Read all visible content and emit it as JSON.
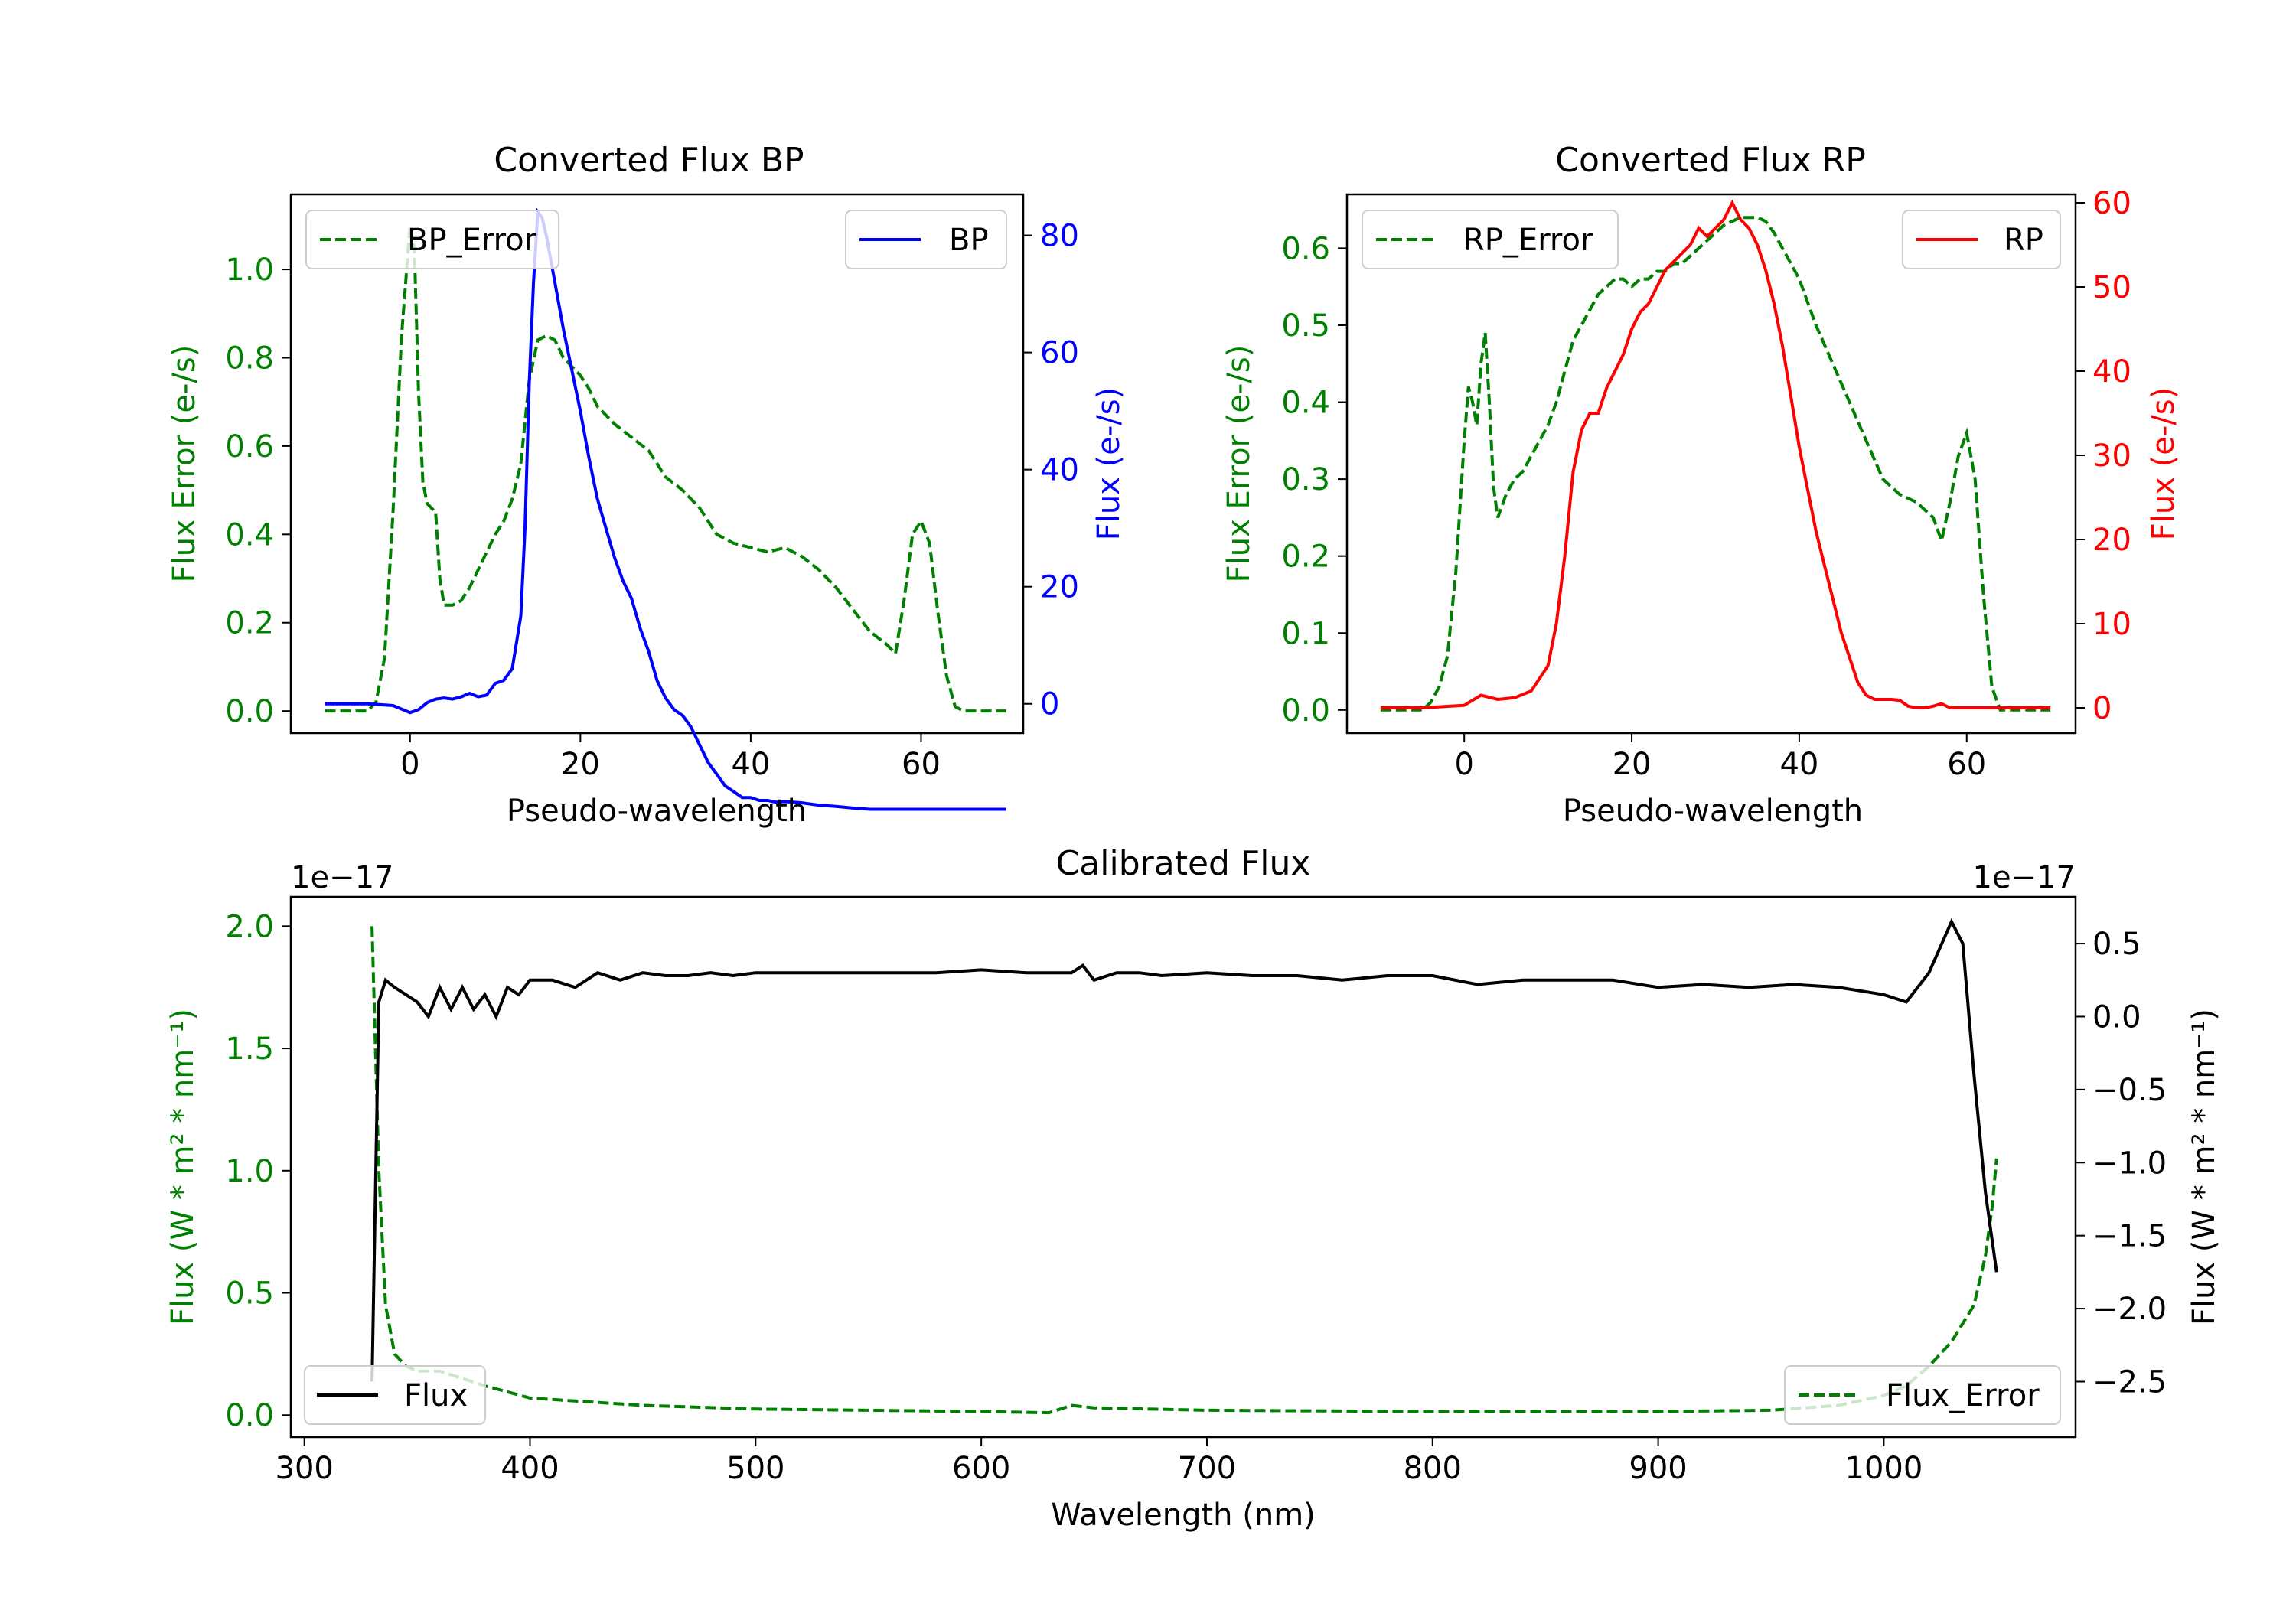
{
  "colors": {
    "error": "#008000",
    "bp": "#0000ff",
    "rp": "#ff0000",
    "flux": "#000000",
    "axis": "#000000"
  },
  "chart_data": [
    {
      "id": "bp",
      "type": "line",
      "title": "Converted Flux BP",
      "xlabel": "Pseudo-wavelength",
      "ylabel_left": "Flux Error (e-/s)",
      "ylabel_right": "Flux (e-/s)",
      "xlim": [
        -14,
        72
      ],
      "ylim_left": [
        -0.05,
        1.17
      ],
      "ylim_right": [
        -5,
        87
      ],
      "xticks": [
        0,
        20,
        40,
        60
      ],
      "xtick_labels": [
        "0",
        "20",
        "40",
        "60"
      ],
      "yticks_left": [
        0.0,
        0.2,
        0.4,
        0.6,
        0.8,
        1.0
      ],
      "ytick_labels_left": [
        "0.0",
        "0.2",
        "0.4",
        "0.6",
        "0.8",
        "1.0"
      ],
      "yticks_right": [
        0,
        20,
        40,
        60,
        80
      ],
      "ytick_labels_right": [
        "0",
        "20",
        "40",
        "60",
        "80"
      ],
      "legend_left": "BP_Error",
      "legend_right": "BP",
      "error_x": [
        -10,
        -5,
        -4,
        -3,
        -2,
        -1,
        0,
        0.5,
        1,
        1.5,
        2,
        3,
        3.5,
        4,
        5,
        6,
        7,
        8,
        9,
        10,
        11,
        12,
        13,
        14,
        15,
        16,
        17,
        18,
        19,
        20,
        21,
        22,
        24,
        26,
        28,
        30,
        32,
        34,
        36,
        38,
        40,
        42,
        44,
        46,
        48,
        50,
        52,
        54,
        56,
        57,
        58,
        59,
        60,
        61,
        62,
        63,
        64,
        65,
        70
      ],
      "error_y": [
        0,
        0,
        0.02,
        0.12,
        0.45,
        0.85,
        1.1,
        1.05,
        0.72,
        0.52,
        0.47,
        0.45,
        0.3,
        0.24,
        0.24,
        0.25,
        0.28,
        0.32,
        0.36,
        0.4,
        0.43,
        0.48,
        0.56,
        0.75,
        0.84,
        0.85,
        0.84,
        0.8,
        0.78,
        0.76,
        0.73,
        0.69,
        0.65,
        0.62,
        0.59,
        0.53,
        0.5,
        0.46,
        0.4,
        0.38,
        0.37,
        0.36,
        0.37,
        0.35,
        0.32,
        0.28,
        0.23,
        0.18,
        0.15,
        0.13,
        0.25,
        0.4,
        0.43,
        0.38,
        0.22,
        0.08,
        0.01,
        0,
        0
      ],
      "flux_x": [
        -10,
        -5,
        -2,
        0,
        1,
        2,
        3,
        4,
        5,
        6,
        7,
        8,
        9,
        10,
        11,
        12,
        13,
        13.5,
        14,
        14.5,
        15,
        15.5,
        16,
        17,
        18,
        19,
        20,
        21,
        22,
        23,
        24,
        25,
        26,
        27,
        28,
        29,
        30,
        31,
        32,
        33,
        34,
        35,
        36,
        37,
        38,
        39,
        40,
        41,
        42,
        43,
        44,
        45,
        46,
        48,
        50,
        52,
        54,
        56,
        58,
        60,
        62,
        65,
        70
      ],
      "flux_y": [
        0,
        0,
        -0.3,
        -1.5,
        -1,
        0.2,
        0.8,
        1,
        0.8,
        1.2,
        1.8,
        1.2,
        1.5,
        3.5,
        4,
        6,
        15,
        30,
        55,
        72,
        84,
        83,
        80,
        72,
        64,
        57,
        50,
        42,
        35,
        30,
        25,
        21,
        18,
        13,
        9,
        4,
        1,
        -1,
        -2,
        -4,
        -7,
        -10,
        -12,
        -14,
        -15,
        -16,
        -16,
        -16.5,
        -16.5,
        -16.8,
        -16.7,
        -16.8,
        -16.9,
        -17.3,
        -17.5,
        -17.8,
        -18,
        -18,
        -18,
        -18,
        -18,
        -18,
        -18
      ]
    },
    {
      "id": "rp",
      "type": "line",
      "title": "Converted Flux RP",
      "xlabel": "Pseudo-wavelength",
      "ylabel_left": "Flux Error (e-/s)",
      "ylabel_right": "Flux (e-/s)",
      "xlim": [
        -14,
        73
      ],
      "ylim_left": [
        -0.03,
        0.67
      ],
      "ylim_right": [
        -3,
        61
      ],
      "xticks": [
        0,
        20,
        40,
        60
      ],
      "xtick_labels": [
        "0",
        "20",
        "40",
        "60"
      ],
      "yticks_left": [
        0.0,
        0.1,
        0.2,
        0.3,
        0.4,
        0.5,
        0.6
      ],
      "ytick_labels_left": [
        "0.0",
        "0.1",
        "0.2",
        "0.3",
        "0.4",
        "0.5",
        "0.6"
      ],
      "yticks_right": [
        0,
        10,
        20,
        30,
        40,
        50,
        60
      ],
      "ytick_labels_right": [
        "0",
        "10",
        "20",
        "30",
        "40",
        "50",
        "60"
      ],
      "legend_left": "RP_Error",
      "legend_right": "RP",
      "error_x": [
        -10,
        -5,
        -4,
        -3,
        -2,
        -1,
        0,
        0.5,
        1,
        1.5,
        2,
        2.5,
        3,
        3.5,
        4,
        5,
        6,
        7,
        8,
        9,
        10,
        11,
        12,
        13,
        14,
        15,
        16,
        17,
        18,
        19,
        20,
        21,
        22,
        23,
        24,
        25,
        26,
        27,
        28,
        29,
        30,
        31,
        32,
        33,
        34,
        35,
        36,
        37,
        38,
        39,
        40,
        42,
        44,
        46,
        48,
        50,
        52,
        54,
        55,
        56,
        57,
        58,
        59,
        60,
        61,
        62,
        63,
        64,
        65,
        70
      ],
      "error_y": [
        0,
        0,
        0.01,
        0.03,
        0.07,
        0.18,
        0.35,
        0.42,
        0.4,
        0.37,
        0.45,
        0.49,
        0.4,
        0.29,
        0.25,
        0.28,
        0.3,
        0.31,
        0.33,
        0.35,
        0.37,
        0.4,
        0.44,
        0.48,
        0.5,
        0.52,
        0.54,
        0.55,
        0.56,
        0.56,
        0.55,
        0.56,
        0.56,
        0.57,
        0.57,
        0.58,
        0.58,
        0.59,
        0.6,
        0.61,
        0.62,
        0.63,
        0.635,
        0.64,
        0.64,
        0.64,
        0.635,
        0.62,
        0.6,
        0.58,
        0.56,
        0.5,
        0.45,
        0.4,
        0.35,
        0.3,
        0.28,
        0.27,
        0.26,
        0.25,
        0.22,
        0.27,
        0.33,
        0.36,
        0.3,
        0.15,
        0.03,
        0,
        0,
        0
      ],
      "flux_x": [
        -10,
        -5,
        0,
        2,
        4,
        6,
        8,
        10,
        11,
        12,
        13,
        14,
        15,
        16,
        17,
        18,
        19,
        20,
        21,
        22,
        23,
        24,
        25,
        26,
        27,
        28,
        29,
        30,
        31,
        32,
        33,
        34,
        35,
        36,
        37,
        38,
        39,
        40,
        41,
        42,
        43,
        44,
        45,
        46,
        47,
        48,
        49,
        50,
        51,
        52,
        53,
        54,
        55,
        56,
        57,
        58,
        60,
        62,
        65,
        70
      ],
      "flux_y": [
        0,
        0,
        0.3,
        1.5,
        1,
        1.2,
        2,
        5,
        10,
        18,
        28,
        33,
        35,
        35,
        38,
        40,
        42,
        45,
        47,
        48,
        50,
        52,
        53,
        54,
        55,
        57,
        56,
        57,
        58,
        60,
        58,
        57,
        55,
        52,
        48,
        43,
        37,
        31,
        26,
        21,
        17,
        13,
        9,
        6,
        3,
        1.5,
        1,
        1,
        1,
        0.9,
        0.2,
        0,
        0,
        0.2,
        0.5,
        0,
        0,
        0,
        0,
        0
      ]
    },
    {
      "id": "cal",
      "type": "line",
      "title": "Calibrated Flux",
      "xlabel": "Wavelength (nm)",
      "ylabel_left": "Flux (W * m² * nm⁻¹)",
      "ylabel_right": "Flux (W * m² * nm⁻¹)",
      "offset_left": "1e−17",
      "offset_right": "1e−17",
      "xlim": [
        294,
        1085
      ],
      "ylim_left": [
        -0.09,
        2.12
      ],
      "ylim_right": [
        -2.88,
        0.82
      ],
      "xticks": [
        300,
        400,
        500,
        600,
        700,
        800,
        900,
        1000
      ],
      "xtick_labels": [
        "300",
        "400",
        "500",
        "600",
        "700",
        "800",
        "900",
        "1000"
      ],
      "yticks_left": [
        0.0,
        0.5,
        1.0,
        1.5,
        2.0
      ],
      "ytick_labels_left": [
        "0.0",
        "0.5",
        "1.0",
        "1.5",
        "2.0"
      ],
      "yticks_right": [
        0.5,
        0.0,
        -0.5,
        -1.0,
        -1.5,
        -2.0,
        -2.5
      ],
      "ytick_labels_right": [
        "0.5",
        "0.0",
        "−0.5",
        "−1.0",
        "−1.5",
        "−2.0",
        "−2.5"
      ],
      "legend_left": "Flux",
      "legend_right": "Flux_Error",
      "error_x": [
        330,
        333,
        336,
        340,
        345,
        350,
        360,
        380,
        400,
        450,
        500,
        550,
        600,
        630,
        640,
        650,
        700,
        800,
        900,
        950,
        980,
        1000,
        1010,
        1020,
        1030,
        1040,
        1045,
        1048,
        1050
      ],
      "error_y": [
        2.0,
        1.0,
        0.45,
        0.25,
        0.2,
        0.18,
        0.18,
        0.12,
        0.07,
        0.04,
        0.025,
        0.02,
        0.015,
        0.01,
        0.04,
        0.03,
        0.02,
        0.015,
        0.015,
        0.02,
        0.04,
        0.08,
        0.12,
        0.2,
        0.3,
        0.45,
        0.65,
        0.85,
        1.05
      ],
      "flux_x": [
        330,
        333,
        336,
        340,
        345,
        350,
        355,
        360,
        365,
        370,
        375,
        380,
        385,
        390,
        395,
        400,
        410,
        420,
        430,
        440,
        450,
        460,
        470,
        480,
        490,
        500,
        520,
        540,
        560,
        580,
        600,
        620,
        640,
        645,
        650,
        660,
        670,
        680,
        700,
        720,
        740,
        760,
        780,
        800,
        820,
        840,
        860,
        880,
        900,
        920,
        940,
        960,
        980,
        1000,
        1010,
        1020,
        1030,
        1035,
        1040,
        1045,
        1050
      ],
      "flux_y": [
        -2.5,
        0.1,
        0.25,
        0.2,
        0.15,
        0.1,
        0.0,
        0.2,
        0.05,
        0.2,
        0.05,
        0.15,
        0.0,
        0.2,
        0.15,
        0.25,
        0.25,
        0.2,
        0.3,
        0.25,
        0.3,
        0.28,
        0.28,
        0.3,
        0.28,
        0.3,
        0.3,
        0.3,
        0.3,
        0.3,
        0.32,
        0.3,
        0.3,
        0.35,
        0.25,
        0.3,
        0.3,
        0.28,
        0.3,
        0.28,
        0.28,
        0.25,
        0.28,
        0.28,
        0.22,
        0.25,
        0.25,
        0.25,
        0.2,
        0.22,
        0.2,
        0.22,
        0.2,
        0.15,
        0.1,
        0.3,
        0.65,
        0.5,
        -0.4,
        -1.2,
        -1.75
      ]
    }
  ]
}
